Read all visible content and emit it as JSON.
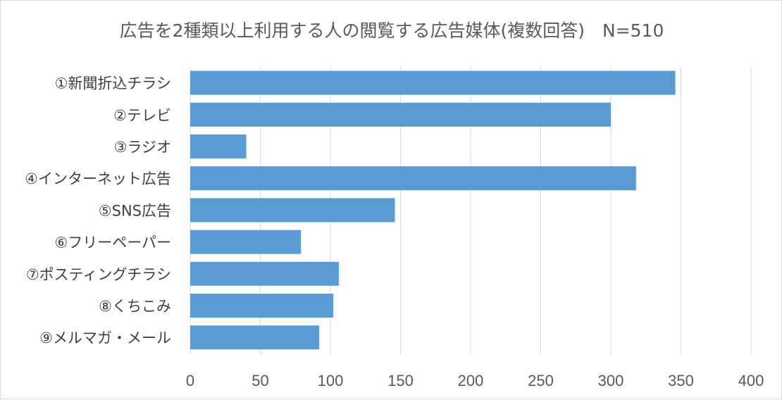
{
  "chart_data": {
    "type": "bar",
    "orientation": "horizontal",
    "title": "広告を2種類以上利用する人の閲覧する広告媒体(複数回答)　N=510",
    "categories": [
      "①新聞折込チラシ",
      "②テレビ",
      "③ラジオ",
      "④インターネット広告",
      "⑤SNS広告",
      "⑥フリーペーパー",
      "⑦ポスティングチラシ",
      "⑧くちこみ",
      "⑨メルマガ・メール"
    ],
    "values": [
      346,
      300,
      40,
      318,
      146,
      79,
      106,
      102,
      92
    ],
    "xlim": [
      0,
      400
    ],
    "xticks": [
      0,
      50,
      100,
      150,
      200,
      250,
      300,
      350,
      400
    ],
    "xlabel": "",
    "ylabel": "",
    "grid": "vertical",
    "legend": "none",
    "bar_color": "#5b9bd5"
  }
}
